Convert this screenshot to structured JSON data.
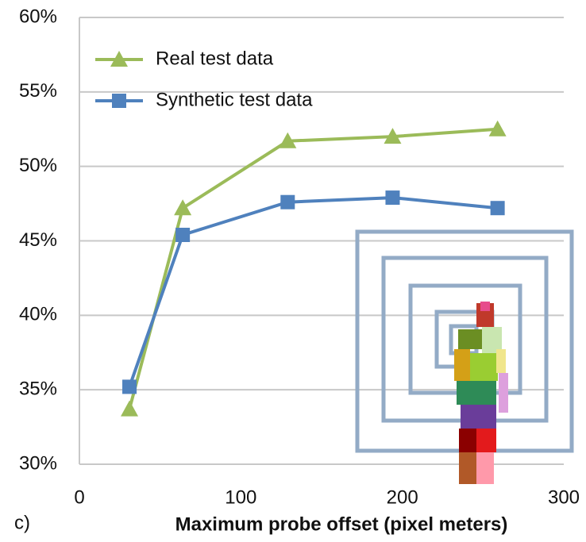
{
  "chart_data": {
    "type": "line",
    "annotation": "c)",
    "x_label": "Maximum probe offset (pixel meters)",
    "xlim": [
      0,
      300
    ],
    "xticks": [
      0,
      100,
      200,
      300
    ],
    "ylim": [
      30,
      60
    ],
    "yticks": [
      {
        "value": 30,
        "label": "30%"
      },
      {
        "value": 35,
        "label": "35%"
      },
      {
        "value": 40,
        "label": "40%"
      },
      {
        "value": 45,
        "label": "45%"
      },
      {
        "value": 50,
        "label": "50%"
      },
      {
        "value": 55,
        "label": "55%"
      },
      {
        "value": 60,
        "label": "60%"
      }
    ],
    "grid": true,
    "legend": "top-left",
    "series": [
      {
        "name": "Real test data",
        "color": "#9bbb59",
        "marker": "triangle",
        "x": [
          31,
          64,
          129,
          194,
          259
        ],
        "values": [
          33.7,
          47.2,
          51.7,
          52.0,
          52.5
        ]
      },
      {
        "name": "Synthetic test data",
        "color": "#4f81bd",
        "marker": "square",
        "x": [
          31,
          64,
          129,
          194,
          259
        ],
        "values": [
          35.2,
          45.4,
          47.6,
          47.9,
          47.2
        ]
      }
    ]
  }
}
